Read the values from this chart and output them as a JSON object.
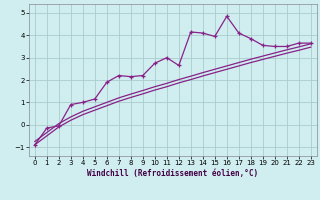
{
  "xlabel": "Windchill (Refroidissement éolien,°C)",
  "xlim": [
    -0.5,
    23.5
  ],
  "ylim": [
    -1.4,
    5.4
  ],
  "yticks": [
    -1,
    0,
    1,
    2,
    3,
    4,
    5
  ],
  "xticks": [
    0,
    1,
    2,
    3,
    4,
    5,
    6,
    7,
    8,
    9,
    10,
    11,
    12,
    13,
    14,
    15,
    16,
    17,
    18,
    19,
    20,
    21,
    22,
    23
  ],
  "bg_color": "#d0eef0",
  "grid_color": "#aacccc",
  "line_color": "#882288",
  "data_x": [
    0,
    1,
    2,
    3,
    4,
    5,
    6,
    7,
    8,
    9,
    10,
    11,
    12,
    13,
    14,
    15,
    16,
    17,
    18,
    19,
    20,
    21,
    22,
    23
  ],
  "data_y": [
    -0.9,
    -0.15,
    -0.05,
    0.9,
    1.0,
    1.15,
    1.9,
    2.2,
    2.15,
    2.2,
    2.75,
    3.0,
    2.65,
    4.15,
    4.1,
    3.95,
    4.85,
    4.1,
    3.85,
    3.55,
    3.5,
    3.5,
    3.65,
    3.65
  ],
  "trend_a_x": [
    0,
    1,
    2,
    3,
    4,
    5,
    6,
    7,
    8,
    9,
    10,
    11,
    12,
    13,
    14,
    15,
    16,
    17,
    18,
    19,
    20,
    21,
    22,
    23
  ],
  "trend_a_y": [
    -0.9,
    -0.5,
    -0.1,
    0.2,
    0.45,
    0.65,
    0.85,
    1.05,
    1.22,
    1.38,
    1.55,
    1.7,
    1.87,
    2.02,
    2.18,
    2.33,
    2.48,
    2.63,
    2.78,
    2.92,
    3.06,
    3.2,
    3.33,
    3.47
  ],
  "trend_b_x": [
    0,
    1,
    2,
    3,
    4,
    5,
    6,
    7,
    8,
    9,
    10,
    11,
    12,
    13,
    14,
    15,
    16,
    17,
    18,
    19,
    20,
    21,
    22,
    23
  ],
  "trend_b_y": [
    -0.75,
    -0.35,
    0.05,
    0.35,
    0.6,
    0.8,
    1.0,
    1.2,
    1.37,
    1.53,
    1.7,
    1.85,
    2.02,
    2.17,
    2.33,
    2.48,
    2.63,
    2.78,
    2.93,
    3.07,
    3.21,
    3.35,
    3.48,
    3.62
  ]
}
